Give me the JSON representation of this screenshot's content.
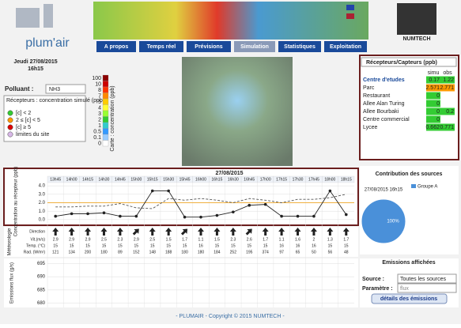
{
  "header": {
    "logo": "plum'air",
    "partner": "NUMTECH"
  },
  "nav": [
    "A propos",
    "Temps réel",
    "Prévisions",
    "Simulation",
    "Statistiques",
    "Exploitation"
  ],
  "left_panel": {
    "date": "Jeudi 27/08/2015",
    "time": "16h15",
    "pollutant_label": "Polluant :",
    "pollutant": "NH3",
    "legend_title": "Récepteurs : concentration simulé (ppb)",
    "legend_items": [
      {
        "label": "[c] < 2",
        "color": "#33cc33"
      },
      {
        "label": "2 ≤ [c] < 5",
        "color": "#ff9900"
      },
      {
        "label": "[c] ≥ 5",
        "color": "#dd0000"
      },
      {
        "label": "limites du site",
        "color": "#d8b8e8"
      }
    ],
    "scale_label": "Carte : concentration (ppb)",
    "color_scale": [
      {
        "value": 100,
        "color": "#8b0000"
      },
      {
        "value": 10,
        "color": "#cc0000"
      },
      {
        "value": 8,
        "color": "#ff3300"
      },
      {
        "value": 7,
        "color": "#ff8800"
      },
      {
        "value": 5,
        "color": "#ffcc00"
      },
      {
        "value": 4,
        "color": "#ffff33"
      },
      {
        "value": 3,
        "color": "#99ff33"
      },
      {
        "value": 2,
        "color": "#33cc33"
      },
      {
        "value": 1,
        "color": "#33cccc"
      },
      {
        "value": 0.5,
        "color": "#3399ff"
      },
      {
        "value": 0.1,
        "color": "#99ccff"
      },
      {
        "value": 0,
        "color": "#ffffff"
      }
    ]
  },
  "receptors": {
    "select": "Récepteurs/Capteurs (ppb)",
    "columns": [
      "simu",
      "obs"
    ],
    "rows": [
      {
        "name": "Centre d'etudes",
        "simu": "0.17",
        "obs": "1.22",
        "color": "#33cc33"
      },
      {
        "name": "Parc",
        "simu": "2.571",
        "obs": "2.771",
        "color": "#ff9900"
      },
      {
        "name": "Restaurant",
        "simu": "0",
        "obs": null,
        "color": "#33cc33"
      },
      {
        "name": "Allee Alan Turing",
        "simu": "0",
        "obs": null,
        "color": "#33cc33"
      },
      {
        "name": "Allee Bourbaki",
        "simu": "0",
        "obs": "0.2",
        "color": "#33cc33"
      },
      {
        "name": "Centre commercial",
        "simu": "0",
        "obs": null,
        "color": "#33cc33"
      },
      {
        "name": "Lycee",
        "simu": "0.662",
        "obs": "0.771",
        "color": "#33cc33"
      }
    ]
  },
  "chart_data": [
    {
      "type": "line",
      "title": "27/08/2015",
      "y_label": "Concentration au récepteur (ppb)",
      "categories": [
        "13h45",
        "14h00",
        "14h15",
        "14h30",
        "14h45",
        "15h00",
        "15h15",
        "15h30",
        "15h45",
        "16h00",
        "16h15",
        "16h30",
        "16h45",
        "17h00",
        "17h15",
        "17h30",
        "17h45",
        "18h00",
        "18h15"
      ],
      "series": [
        {
          "color": "#222222",
          "values": [
            0.4,
            0.7,
            0.7,
            0.8,
            0.4,
            0.4,
            3.4,
            3.4,
            0.3,
            0.3,
            0.5,
            0.9,
            1.7,
            1.8,
            0.4,
            0.4,
            0.4,
            3.4,
            0.6
          ]
        },
        {
          "color": "#555555",
          "dashed": true,
          "values": [
            1.5,
            1.5,
            1.6,
            1.6,
            1.9,
            1.4,
            1.3,
            2.5,
            2.3,
            2.5,
            2.3,
            2.0,
            2.5,
            2.3,
            2.0,
            2.4,
            2.4,
            2.6,
            3.0
          ]
        }
      ],
      "reference_line": {
        "value": 2,
        "color": "#f0b040"
      },
      "ylim": [
        -0.2,
        4.2
      ],
      "yticks": [
        {
          "value": 0,
          "label": "0.0"
        },
        {
          "value": 1,
          "label": "1.0"
        },
        {
          "value": 2,
          "label": "2.0"
        },
        {
          "value": 3,
          "label": "3.0"
        },
        {
          "value": 4,
          "label": "4.0"
        }
      ],
      "grid": true
    },
    {
      "type": "table",
      "title": "Météorologie",
      "row_labels": [
        "Direction",
        "Vit.(m/s)",
        "Temp. (°C)",
        "Rad. (W/m²)"
      ],
      "direction": [
        0,
        0,
        0,
        0,
        0,
        45,
        0,
        0,
        45,
        0,
        0,
        0,
        45,
        0,
        0,
        0,
        0,
        0,
        0
      ],
      "speed": [
        2.9,
        2.9,
        2.9,
        2.5,
        2.3,
        2.9,
        2.5,
        1.5,
        1.7,
        1.1,
        1.5,
        2.3,
        2.6,
        1.7,
        1.1,
        1.6,
        2,
        1.3,
        1.7
      ],
      "temperature": [
        15,
        15,
        15,
        15,
        15,
        15,
        15,
        15,
        15,
        16,
        15,
        15,
        15,
        15,
        16,
        16,
        16,
        15,
        15
      ],
      "radiation": [
        121,
        134,
        200,
        180,
        89,
        152,
        148,
        188,
        180,
        180,
        184,
        252,
        195,
        374,
        97,
        65,
        50,
        56,
        48
      ]
    },
    {
      "type": "line",
      "y_label": "Emissions flux (g/s)",
      "series": [],
      "ylim": [
        679,
        696
      ],
      "yticks": [
        680,
        685,
        690,
        695
      ],
      "grid": true
    },
    {
      "type": "pie",
      "title": "Contribution des sources",
      "subtitle": "27/08/2015 16h15",
      "categories": [
        "Groupe A"
      ],
      "values": [
        100
      ],
      "value_labels": [
        "100%"
      ],
      "colors": [
        "#4a90d9"
      ]
    }
  ],
  "emissions_panel": {
    "title": "Emissions affichées",
    "source_label": "Source :",
    "source": "Toutes les sources",
    "param_label": "Paramètre :",
    "param": "flux",
    "button": "détails des émissions"
  },
  "footer": "- PLUMAIR - Copyright © 2015 NUMTECH -"
}
